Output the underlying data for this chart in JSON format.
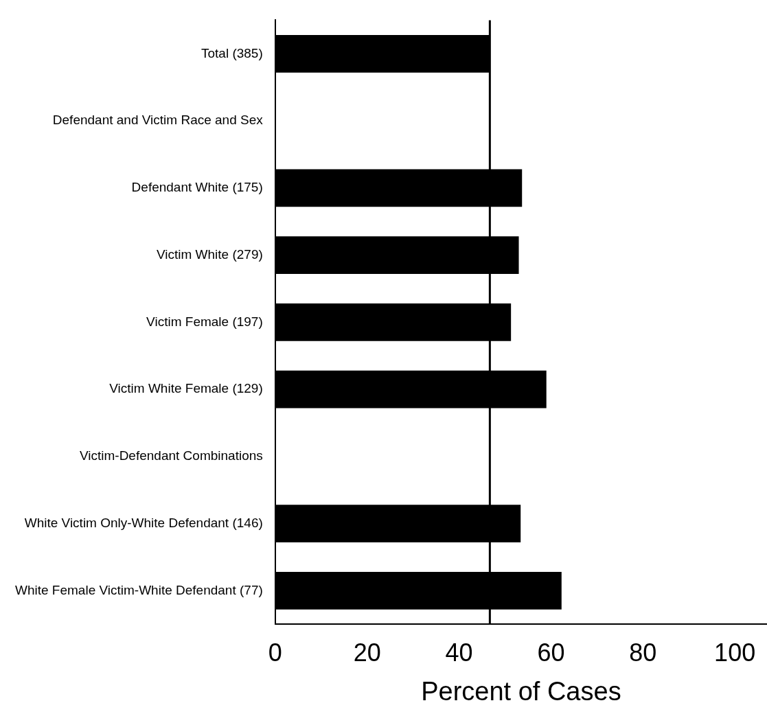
{
  "chart_data": {
    "type": "bar",
    "orientation": "horizontal",
    "xlabel": "Percent of Cases",
    "categories": [
      "Total (385)",
      "Defendant and Victim Race and Sex",
      "Defendant White (175)",
      "Victim White (279)",
      "Victim Female (197)",
      "Victim White Female (129)",
      "Victim-Defendant Combinations",
      "White Victim Only-White Defendant (146)",
      "White Female Victim-White Defendant (77)"
    ],
    "values": [
      46.6,
      null,
      53.7,
      53.0,
      51.3,
      59.0,
      null,
      53.4,
      62.3
    ],
    "color": "#000000",
    "xlim": [
      0,
      107
    ],
    "xticks": [
      0,
      20,
      40,
      60,
      80,
      100
    ],
    "ref_lines": [
      {
        "axis": "x",
        "value": 46.7,
        "color": "#000000"
      }
    ],
    "grid": false,
    "legend": false
  }
}
